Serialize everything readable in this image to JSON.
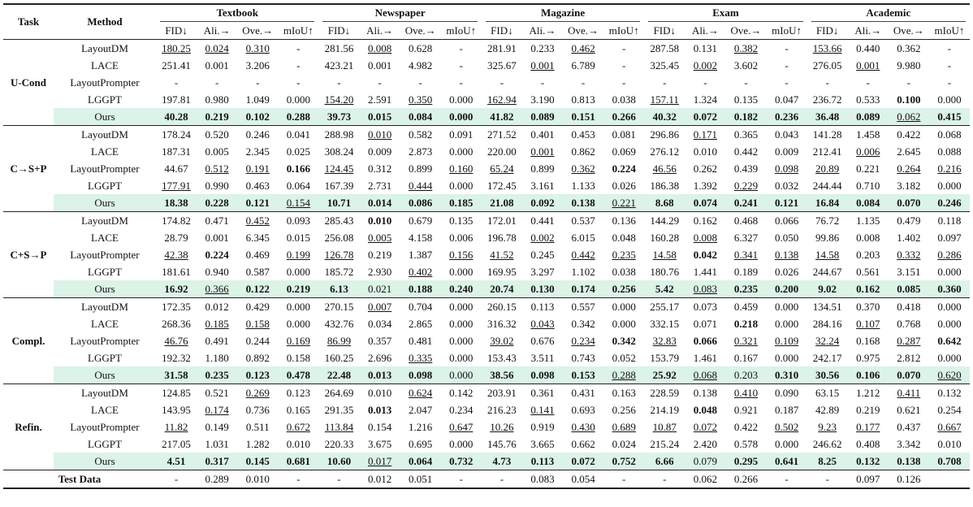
{
  "header": {
    "task": "Task",
    "method": "Method",
    "datasets": [
      "Textbook",
      "Newspaper",
      "Magazine",
      "Exam",
      "Academic"
    ],
    "metrics": [
      "FID↓",
      "Ali.→",
      "Ove.→",
      "mIoU↑"
    ]
  },
  "groups": [
    {
      "task": "U-Cond",
      "rows": [
        {
          "method": "LayoutDM",
          "cells": [
            "180.25",
            "0.024",
            "0.310",
            "-",
            "281.56",
            "0.008",
            "0.628",
            "-",
            "281.91",
            "0.233",
            "0.462",
            "-",
            "287.58",
            "0.131",
            "0.382",
            "-",
            "153.66",
            "0.440",
            "0.362",
            "-"
          ],
          "underline": [
            0,
            1,
            2,
            5,
            10,
            14,
            16
          ]
        },
        {
          "method": "LACE",
          "cells": [
            "251.41",
            "0.001",
            "3.206",
            "-",
            "423.21",
            "0.001",
            "4.982",
            "-",
            "325.67",
            "0.001",
            "6.789",
            "-",
            "325.45",
            "0.002",
            "3.602",
            "-",
            "276.05",
            "0.001",
            "9.980",
            "-"
          ],
          "underline": [
            9,
            13,
            17
          ]
        },
        {
          "method": "LayoutPrompter",
          "cells": [
            "-",
            "-",
            "-",
            "-",
            "-",
            "-",
            "-",
            "-",
            "-",
            "-",
            "-",
            "-",
            "-",
            "-",
            "-",
            "-",
            "-",
            "-",
            "-",
            "-"
          ]
        },
        {
          "method": "LGGPT",
          "cells": [
            "197.81",
            "0.980",
            "1.049",
            "0.000",
            "154.20",
            "2.591",
            "0.350",
            "0.000",
            "162.94",
            "3.190",
            "0.813",
            "0.038",
            "157.11",
            "1.324",
            "0.135",
            "0.047",
            "236.72",
            "0.533",
            "0.100",
            "0.000"
          ],
          "underline": [
            4,
            6,
            8,
            12
          ],
          "bold": [
            18
          ]
        },
        {
          "method": "Ours",
          "cells": [
            "40.28",
            "0.219",
            "0.102",
            "0.288",
            "39.73",
            "0.015",
            "0.084",
            "0.000",
            "41.82",
            "0.089",
            "0.151",
            "0.266",
            "40.32",
            "0.072",
            "0.182",
            "0.236",
            "36.48",
            "0.089",
            "0.062",
            "0.415"
          ],
          "bold": [
            0,
            1,
            2,
            3,
            4,
            5,
            6,
            7,
            8,
            9,
            10,
            11,
            12,
            13,
            14,
            15,
            16,
            17,
            19
          ],
          "underline": [
            18
          ]
        }
      ]
    },
    {
      "task": "C→S+P",
      "rows": [
        {
          "method": "LayoutDM",
          "cells": [
            "178.24",
            "0.520",
            "0.246",
            "0.041",
            "288.98",
            "0.010",
            "0.582",
            "0.091",
            "271.52",
            "0.401",
            "0.453",
            "0.081",
            "296.86",
            "0.171",
            "0.365",
            "0.043",
            "141.28",
            "1.458",
            "0.422",
            "0.068"
          ],
          "underline": [
            5,
            13
          ]
        },
        {
          "method": "LACE",
          "cells": [
            "187.31",
            "0.005",
            "2.345",
            "0.025",
            "308.24",
            "0.009",
            "2.873",
            "0.000",
            "220.00",
            "0.001",
            "0.862",
            "0.069",
            "276.12",
            "0.010",
            "0.442",
            "0.009",
            "212.41",
            "0.006",
            "2.645",
            "0.088"
          ],
          "underline": [
            9,
            17
          ]
        },
        {
          "method": "LayoutPrompter",
          "cells": [
            "44.67",
            "0.512",
            "0.191",
            "0.166",
            "124.45",
            "0.312",
            "0.899",
            "0.160",
            "65.24",
            "0.899",
            "0.362",
            "0.224",
            "46.56",
            "0.262",
            "0.439",
            "0.098",
            "20.89",
            "0.221",
            "0.264",
            "0.216"
          ],
          "underline": [
            1,
            2,
            4,
            7,
            8,
            10,
            12,
            15,
            16,
            18,
            19
          ],
          "bold": [
            3,
            11
          ]
        },
        {
          "method": "LGGPT",
          "cells": [
            "177.91",
            "0.990",
            "0.463",
            "0.064",
            "167.39",
            "2.731",
            "0.444",
            "0.000",
            "172.45",
            "3.161",
            "1.133",
            "0.026",
            "186.38",
            "1.392",
            "0.229",
            "0.032",
            "244.44",
            "0.710",
            "3.182",
            "0.000"
          ],
          "underline": [
            0,
            6,
            14
          ]
        },
        {
          "method": "Ours",
          "cells": [
            "18.38",
            "0.228",
            "0.121",
            "0.154",
            "10.71",
            "0.014",
            "0.086",
            "0.185",
            "21.08",
            "0.092",
            "0.138",
            "0.221",
            "8.68",
            "0.074",
            "0.241",
            "0.121",
            "16.84",
            "0.084",
            "0.070",
            "0.246"
          ],
          "bold": [
            0,
            1,
            2,
            4,
            5,
            6,
            7,
            8,
            9,
            10,
            12,
            13,
            14,
            15,
            16,
            17,
            18,
            19
          ],
          "underline": [
            3,
            11
          ]
        }
      ]
    },
    {
      "task": "C+S→P",
      "rows": [
        {
          "method": "LayoutDM",
          "cells": [
            "174.82",
            "0.471",
            "0.452",
            "0.093",
            "285.43",
            "0.010",
            "0.679",
            "0.135",
            "172.01",
            "0.441",
            "0.537",
            "0.136",
            "144.29",
            "0.162",
            "0.468",
            "0.066",
            "76.72",
            "1.135",
            "0.479",
            "0.118"
          ],
          "underline": [
            2
          ],
          "bold": [
            5
          ]
        },
        {
          "method": "LACE",
          "cells": [
            "28.79",
            "0.001",
            "6.345",
            "0.015",
            "256.08",
            "0.005",
            "4.158",
            "0.006",
            "196.78",
            "0.002",
            "6.015",
            "0.048",
            "160.28",
            "0.008",
            "6.327",
            "0.050",
            "99.86",
            "0.008",
            "1.402",
            "0.097"
          ],
          "underline": [
            5,
            9,
            13
          ]
        },
        {
          "method": "LayoutPrompter",
          "cells": [
            "42.38",
            "0.224",
            "0.469",
            "0.199",
            "126.78",
            "0.219",
            "1.387",
            "0.156",
            "41.52",
            "0.245",
            "0.442",
            "0.235",
            "14.58",
            "0.042",
            "0.341",
            "0.138",
            "14.58",
            "0.203",
            "0.332",
            "0.286"
          ],
          "underline": [
            0,
            3,
            4,
            7,
            8,
            10,
            11,
            12,
            14,
            15,
            16,
            18,
            19
          ],
          "bold": [
            1,
            13
          ]
        },
        {
          "method": "LGGPT",
          "cells": [
            "181.61",
            "0.940",
            "0.587",
            "0.000",
            "185.72",
            "2.930",
            "0.402",
            "0.000",
            "169.95",
            "3.297",
            "1.102",
            "0.038",
            "180.76",
            "1.441",
            "0.189",
            "0.026",
            "244.67",
            "0.561",
            "3.151",
            "0.000"
          ],
          "underline": [
            6
          ]
        },
        {
          "method": "Ours",
          "cells": [
            "16.92",
            "0.366",
            "0.122",
            "0.219",
            "6.13",
            "0.021",
            "0.188",
            "0.240",
            "20.74",
            "0.130",
            "0.174",
            "0.256",
            "5.42",
            "0.083",
            "0.235",
            "0.200",
            "9.02",
            "0.162",
            "0.085",
            "0.360"
          ],
          "bold": [
            0,
            2,
            3,
            4,
            6,
            7,
            8,
            9,
            10,
            11,
            12,
            14,
            15,
            16,
            17,
            18,
            19
          ],
          "underline": [
            1,
            13
          ]
        }
      ]
    },
    {
      "task": "Compl.",
      "rows": [
        {
          "method": "LayoutDM",
          "cells": [
            "172.35",
            "0.012",
            "0.429",
            "0.000",
            "270.15",
            "0.007",
            "0.704",
            "0.000",
            "260.15",
            "0.113",
            "0.557",
            "0.000",
            "255.17",
            "0.073",
            "0.459",
            "0.000",
            "134.51",
            "0.370",
            "0.418",
            "0.000"
          ],
          "underline": [
            5
          ]
        },
        {
          "method": "LACE",
          "cells": [
            "268.36",
            "0.185",
            "0.158",
            "0.000",
            "432.76",
            "0.034",
            "2.865",
            "0.000",
            "316.32",
            "0.043",
            "0.342",
            "0.000",
            "332.15",
            "0.071",
            "0.218",
            "0.000",
            "284.16",
            "0.107",
            "0.768",
            "0.000"
          ],
          "underline": [
            1,
            2,
            9,
            17
          ],
          "bold": [
            14
          ]
        },
        {
          "method": "LayoutPrompter",
          "cells": [
            "46.76",
            "0.491",
            "0.244",
            "0.169",
            "86.99",
            "0.357",
            "0.481",
            "0.000",
            "39.02",
            "0.676",
            "0.234",
            "0.342",
            "32.83",
            "0.066",
            "0.321",
            "0.109",
            "32.24",
            "0.168",
            "0.287",
            "0.642"
          ],
          "underline": [
            0,
            3,
            4,
            8,
            10,
            12,
            14,
            15,
            16,
            18
          ],
          "bold": [
            11,
            13,
            19
          ]
        },
        {
          "method": "LGGPT",
          "cells": [
            "192.32",
            "1.180",
            "0.892",
            "0.158",
            "160.25",
            "2.696",
            "0.335",
            "0.000",
            "153.43",
            "3.511",
            "0.743",
            "0.052",
            "153.79",
            "1.461",
            "0.167",
            "0.000",
            "242.17",
            "0.975",
            "2.812",
            "0.000"
          ],
          "underline": [
            6
          ]
        },
        {
          "method": "Ours",
          "cells": [
            "31.58",
            "0.235",
            "0.123",
            "0.478",
            "22.48",
            "0.013",
            "0.098",
            "0.000",
            "38.56",
            "0.098",
            "0.153",
            "0.288",
            "25.92",
            "0.068",
            "0.203",
            "0.310",
            "30.56",
            "0.106",
            "0.070",
            "0.620"
          ],
          "bold": [
            0,
            1,
            2,
            3,
            4,
            5,
            6,
            8,
            9,
            10,
            12,
            15,
            16,
            17,
            18
          ],
          "underline": [
            11,
            13,
            19
          ]
        }
      ]
    },
    {
      "task": "Refin.",
      "rows": [
        {
          "method": "LayoutDM",
          "cells": [
            "124.85",
            "0.521",
            "0.269",
            "0.123",
            "264.69",
            "0.010",
            "0.624",
            "0.142",
            "203.91",
            "0.361",
            "0.431",
            "0.163",
            "228.59",
            "0.138",
            "0.410",
            "0.090",
            "63.15",
            "1.212",
            "0.411",
            "0.132"
          ],
          "underline": [
            2,
            6,
            14,
            18
          ]
        },
        {
          "method": "LACE",
          "cells": [
            "143.95",
            "0.174",
            "0.736",
            "0.165",
            "291.35",
            "0.013",
            "2.047",
            "0.234",
            "216.23",
            "0.141",
            "0.693",
            "0.256",
            "214.19",
            "0.048",
            "0.921",
            "0.187",
            "42.89",
            "0.219",
            "0.621",
            "0.254"
          ],
          "underline": [
            1,
            9
          ],
          "bold": [
            5,
            13
          ]
        },
        {
          "method": "LayoutPrompter",
          "cells": [
            "11.82",
            "0.149",
            "0.511",
            "0.672",
            "113.84",
            "0.154",
            "1.216",
            "0.647",
            "10.26",
            "0.919",
            "0.430",
            "0.689",
            "10.87",
            "0.072",
            "0.422",
            "0.502",
            "9.23",
            "0.177",
            "0.437",
            "0.667"
          ],
          "underline": [
            0,
            3,
            4,
            7,
            8,
            10,
            11,
            12,
            13,
            15,
            16,
            17,
            19
          ]
        },
        {
          "method": "LGGPT",
          "cells": [
            "217.05",
            "1.031",
            "1.282",
            "0.010",
            "220.33",
            "3.675",
            "0.695",
            "0.000",
            "145.76",
            "3.665",
            "0.662",
            "0.024",
            "215.24",
            "2.420",
            "0.578",
            "0.000",
            "246.62",
            "0.408",
            "3.342",
            "0.010"
          ]
        },
        {
          "method": "Ours",
          "cells": [
            "4.51",
            "0.317",
            "0.145",
            "0.681",
            "10.60",
            "0.017",
            "0.064",
            "0.732",
            "4.73",
            "0.113",
            "0.072",
            "0.752",
            "6.66",
            "0.079",
            "0.295",
            "0.641",
            "8.25",
            "0.132",
            "0.138",
            "0.708"
          ],
          "bold": [
            0,
            1,
            2,
            3,
            4,
            6,
            7,
            8,
            9,
            10,
            11,
            12,
            14,
            15,
            16,
            17,
            18,
            19
          ],
          "underline": [
            5
          ]
        }
      ]
    }
  ],
  "test_data": {
    "label": "Test Data",
    "cells": [
      "-",
      "0.289",
      "0.010",
      "-",
      "-",
      "0.012",
      "0.051",
      "-",
      "-",
      "0.083",
      "0.054",
      "-",
      "-",
      "0.062",
      "0.266",
      "-",
      "-",
      "0.097",
      "0.126",
      null
    ]
  }
}
